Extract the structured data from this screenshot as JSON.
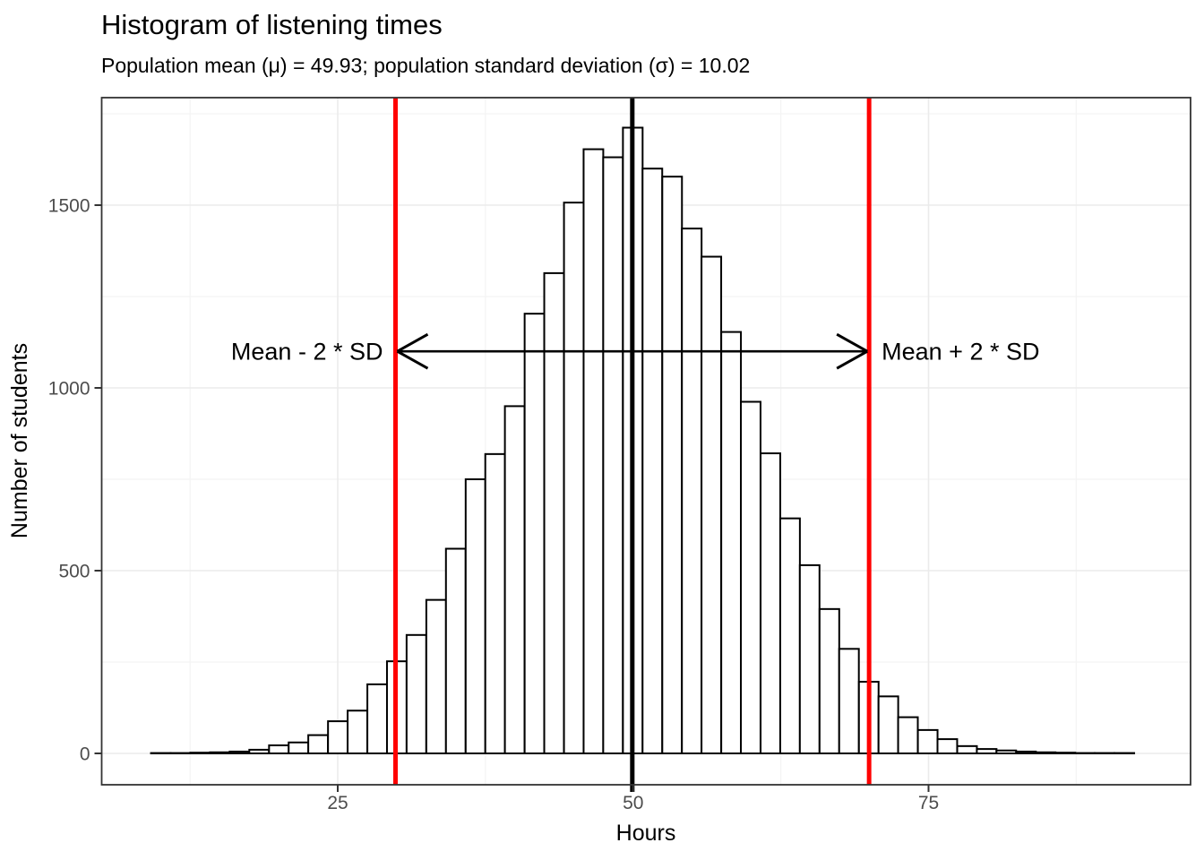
{
  "figure": {
    "title": "Histogram of listening times",
    "subtitle": "Population mean (μ) = 49.93; population standard deviation (σ) = 10.02"
  },
  "chart_data": {
    "type": "bar",
    "subtype": "histogram",
    "title": "Histogram of listening times",
    "subtitle": "Population mean (μ) = 49.93; population standard deviation (σ) = 10.02",
    "xlabel": "Hours",
    "ylabel": "Number of students",
    "x_ticks": [
      25,
      50,
      75
    ],
    "y_ticks": [
      0,
      500,
      1000,
      1500
    ],
    "x_minor_gridlines": [
      12.5,
      37.5,
      62.5,
      87.5
    ],
    "y_minor_gridlines": [
      250,
      750,
      1250,
      1750
    ],
    "xlim": [
      5.0,
      97.2
    ],
    "ylim": [
      -86,
      1794
    ],
    "grid": true,
    "legend_position": "none",
    "population_mean": 49.93,
    "population_sd": 10.02,
    "bin_width": 1.664,
    "bin_centers": [
      10.03,
      11.7,
      13.36,
      15.02,
      16.69,
      18.35,
      20.02,
      21.68,
      23.34,
      25.01,
      26.67,
      28.34,
      30.0,
      31.66,
      33.33,
      34.99,
      36.66,
      38.32,
      39.98,
      41.65,
      43.31,
      44.98,
      46.64,
      48.3,
      49.97,
      51.63,
      53.3,
      54.96,
      56.62,
      58.29,
      59.95,
      61.62,
      63.28,
      64.94,
      66.61,
      68.27,
      69.94,
      71.6,
      73.26,
      74.93,
      76.59,
      78.26,
      79.92,
      81.58,
      83.25,
      84.91,
      86.58,
      88.24,
      89.9,
      91.57
    ],
    "counts": [
      1,
      1,
      2,
      3,
      5,
      10,
      22,
      30,
      50,
      88,
      117,
      189,
      252,
      324,
      420,
      560,
      750,
      819,
      950,
      1203,
      1314,
      1507,
      1653,
      1631,
      1712,
      1600,
      1578,
      1436,
      1359,
      1153,
      962,
      821,
      643,
      515,
      395,
      286,
      196,
      156,
      99,
      64,
      39,
      20,
      12,
      8,
      5,
      3,
      2,
      1,
      1,
      1
    ],
    "vlines": [
      {
        "x": 29.89,
        "color": "#FF0000",
        "name": "mean-minus-2sd-line"
      },
      {
        "x": 49.93,
        "color": "#000000",
        "name": "mean-line"
      },
      {
        "x": 69.97,
        "color": "#FF0000",
        "name": "mean-plus-2sd-line"
      }
    ],
    "arrow": {
      "x_start": 29.89,
      "x_end": 69.97,
      "y": 1100,
      "double_headed": true
    },
    "annotations": [
      {
        "text": "Mean - 2 * SD",
        "x": 29.89,
        "y": 1100,
        "side": "left"
      },
      {
        "text": "Mean + 2 * SD",
        "x": 69.97,
        "y": 1100,
        "side": "right"
      }
    ],
    "colors": {
      "bar_fill": "#FFFFFF",
      "bar_stroke": "#000000",
      "grid_major": "#EBEBEB",
      "grid_minor": "#F4F4F4",
      "panel_border": "#333333",
      "axis_text": "#4D4D4D",
      "tick_mark": "#333333",
      "red_line": "#FF0000",
      "mean_line": "#000000",
      "background": "#FFFFFF"
    }
  }
}
